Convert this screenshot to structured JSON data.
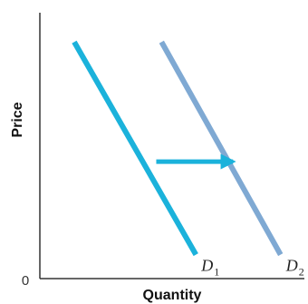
{
  "chart_data": {
    "type": "line",
    "xlabel": "Quantity",
    "ylabel": "Price",
    "origin_label": "0",
    "xlim": [
      0,
      10
    ],
    "ylim": [
      0,
      10
    ],
    "grid": false,
    "series": [
      {
        "label_main": "D",
        "label_sub": "1",
        "color": "#1BB2DB",
        "points": [
          [
            1.3,
            8.9
          ],
          [
            5.9,
            0.9
          ]
        ]
      },
      {
        "label_main": "D",
        "label_sub": "2",
        "color": "#7FA9D3",
        "points": [
          [
            4.6,
            8.9
          ],
          [
            9.1,
            0.9
          ]
        ]
      }
    ],
    "annotations": [
      {
        "type": "arrow",
        "color": "#1BB2DB",
        "from": [
          4.4,
          4.4
        ],
        "to": [
          7.3,
          4.4
        ]
      }
    ]
  }
}
